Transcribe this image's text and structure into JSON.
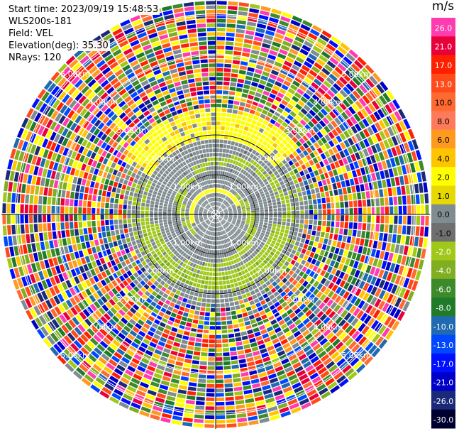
{
  "header": {
    "start_time": "Start time: 2023/09/19 15:48:53",
    "instrument": "WLS200s-181",
    "field": "Field: VEL",
    "elevation": "Elevation(deg): 35.30",
    "nrays": "NRays: 120"
  },
  "colorbar": {
    "unit": "m/s",
    "levels": [
      "26.0",
      "21.0",
      "17.0",
      "13.0",
      "10.0",
      "8.0",
      "6.0",
      "4.0",
      "2.0",
      "1.0",
      "0.0",
      "-1.0",
      "-2.0",
      "-4.0",
      "-6.0",
      "-8.0",
      "-10.0",
      "-13.0",
      "-17.0",
      "-21.0",
      "-26.0",
      "-30.0"
    ],
    "colors": [
      "#ff3bb0",
      "#e8003a",
      "#ff2000",
      "#ff4a1a",
      "#ff6a30",
      "#ff7a5a",
      "#ff9a20",
      "#ffc400",
      "#ffff00",
      "#e6d800",
      "#7f8c90",
      "#6f6f6f",
      "#a0c818",
      "#7fae20",
      "#3c8a2a",
      "#1f7a2a",
      "#1f6ab0",
      "#0048ff",
      "#0010ff",
      "#0000c8",
      "#1a2a78",
      "#000030"
    ]
  },
  "chart_data": {
    "type": "heatmap",
    "projection": "polar PPI",
    "field": "VEL",
    "units": "m/s",
    "nrays": 120,
    "elevation_deg": 35.3,
    "range_rings_km": [
      1.0,
      2.0,
      3.0,
      4.0,
      5.0
    ],
    "ring_labels": [
      "1.00km",
      "2.00km",
      "3.00km",
      "4.00km",
      "5.00km"
    ],
    "pattern": {
      "inner_gray_radius_fraction": 0.42,
      "yellow_band": "north arc near 2.0-2.8 km",
      "green_ring": "around 1.6-2.1 km, plus inner spiral",
      "outer": "noisy mixed colors beyond ~2.8 km"
    },
    "grid": true
  }
}
